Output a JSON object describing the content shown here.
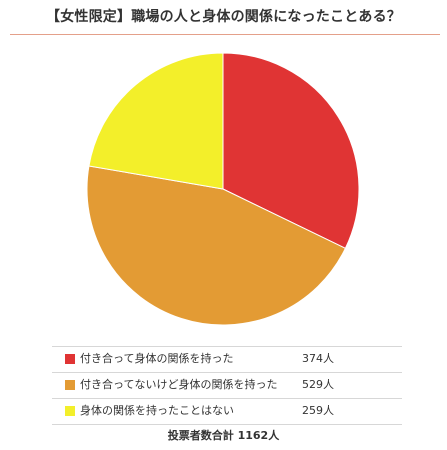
{
  "title": "【女性限定】職場の人と身体の関係になったことある？",
  "colors": {
    "slice_1": "#e03434",
    "slice_2": "#e39b34",
    "slice_3": "#f3ef2a",
    "rule": "#e4a08a"
  },
  "chart_data": {
    "type": "pie",
    "title": "【女性限定】職場の人と身体の関係になったことある？",
    "categories": [
      "付き合って身体の関係を持った",
      "付き合ってないけど身体の関係を持った",
      "身体の関係を持ったことはない"
    ],
    "values": [
      374,
      529,
      259
    ],
    "value_labels": [
      "374人",
      "529人",
      "259人"
    ],
    "legend_placement": "bottom",
    "total_label": "投票者数合計 1162人"
  }
}
